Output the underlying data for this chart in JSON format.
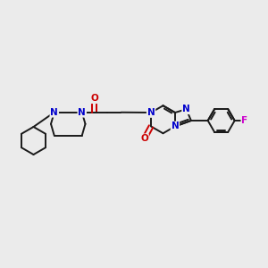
{
  "bg_color": "#ebebeb",
  "bond_color": "#1a1a1a",
  "N_color": "#0000cc",
  "O_color": "#cc0000",
  "F_color": "#cc00cc",
  "line_width": 1.4,
  "figsize": [
    3.0,
    3.0
  ],
  "dpi": 100,
  "xlim": [
    0,
    12
  ],
  "ylim": [
    0,
    10
  ]
}
